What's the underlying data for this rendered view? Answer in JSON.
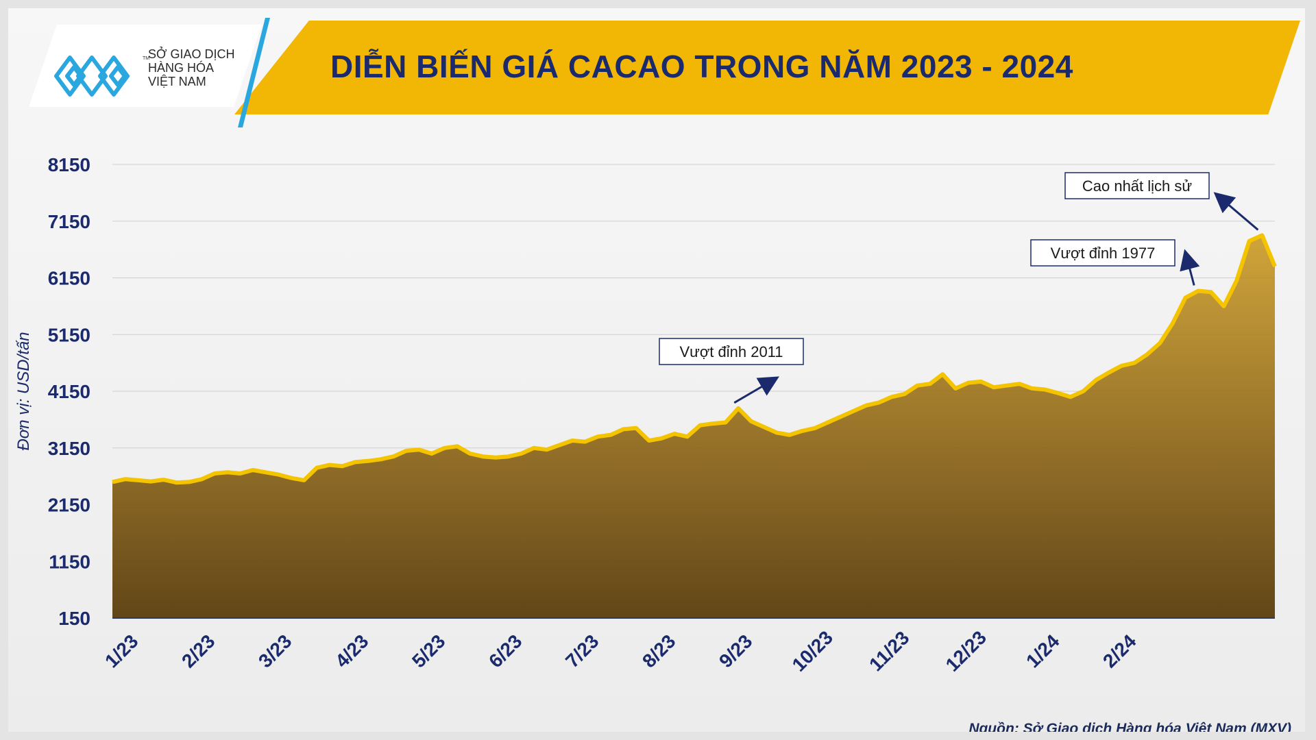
{
  "header": {
    "title": "DIỄN BIẾN GIÁ CACAO TRONG NĂM 2023 - 2024",
    "logo_lines": [
      "SỞ GIAO DỊCH",
      "HÀNG HÓA",
      "VIỆT NAM"
    ],
    "logo_tm": "TM"
  },
  "footer": {
    "source": "Nguồn: Sở Giao dịch Hàng hóa Việt Nam (MXV)"
  },
  "colors": {
    "banner": "#f2b705",
    "title": "#1a2a6c",
    "line": "#f5c400",
    "logo": "#2aa7df",
    "axis_text": "#1a2a6c"
  },
  "chart_data": {
    "type": "area",
    "title": "DIỄN BIẾN GIÁ CACAO TRONG NĂM 2023 - 2024",
    "ylabel": "Đơn vị: USD/tấn",
    "xlabel": "",
    "ylim": [
      150,
      8150
    ],
    "yticks": [
      150,
      1150,
      2150,
      3150,
      4150,
      5150,
      6150,
      7150,
      8150
    ],
    "xticks": [
      "1/23",
      "2/23",
      "3/23",
      "4/23",
      "5/23",
      "6/23",
      "7/23",
      "8/23",
      "9/23",
      "10/23",
      "11/23",
      "12/23",
      "1/24",
      "2/24"
    ],
    "grid": true,
    "series": [
      {
        "values": [
          2550,
          2600,
          2580,
          2560,
          2590,
          2540,
          2550,
          2600,
          2700,
          2720,
          2700,
          2760,
          2720,
          2680,
          2620,
          2580,
          2800,
          2850,
          2830,
          2900,
          2920,
          2950,
          3000,
          3100,
          3120,
          3050,
          3150,
          3180,
          3050,
          3000,
          2980,
          3000,
          3050,
          3150,
          3120,
          3200,
          3280,
          3260,
          3350,
          3380,
          3480,
          3500,
          3280,
          3320,
          3400,
          3350,
          3550,
          3580,
          3600,
          3850,
          3620,
          3520,
          3420,
          3380,
          3450,
          3500,
          3600,
          3700,
          3800,
          3900,
          3950,
          4050,
          4100,
          4250,
          4280,
          4450,
          4200,
          4300,
          4320,
          4220,
          4250,
          4280,
          4200,
          4180,
          4120,
          4050,
          4150,
          4350,
          4480,
          4600,
          4650,
          4800,
          5000,
          5350,
          5800,
          5920,
          5900,
          5650,
          6100,
          6800,
          6900,
          6350
        ]
      }
    ],
    "annotations": [
      {
        "text": "Vượt đỉnh 2011",
        "x": "9/2023",
        "y": 3850
      },
      {
        "text": "Vượt đỉnh 1977",
        "x": "2/2024",
        "y": 5920
      },
      {
        "text": "Cao nhất lịch sử",
        "x": "2/2024",
        "y": 6900
      }
    ]
  }
}
